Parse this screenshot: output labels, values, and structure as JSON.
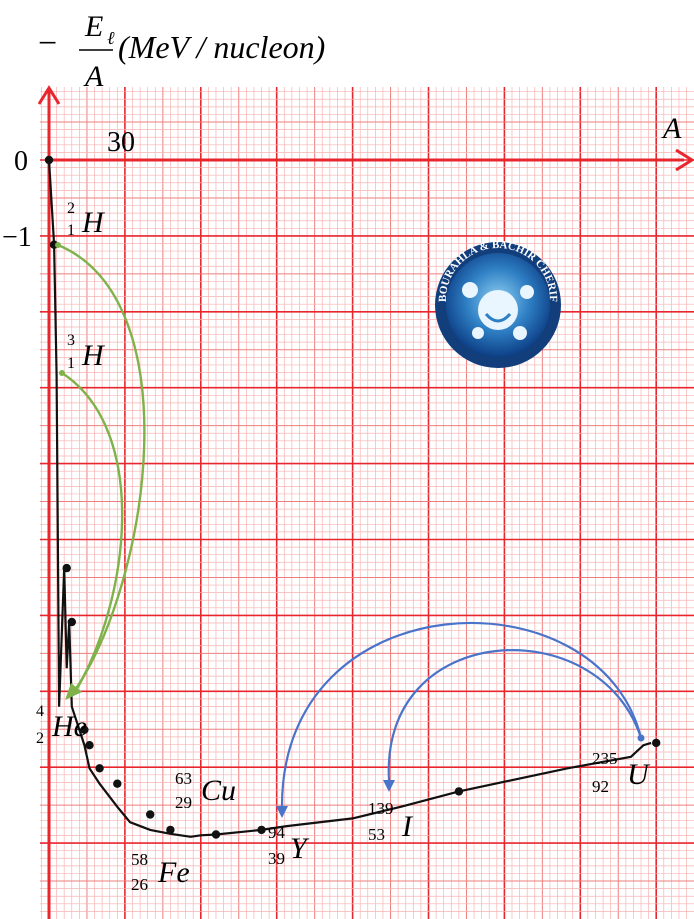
{
  "chart_data": {
    "type": "line",
    "title": "",
    "ylabel": {
      "sign": "−",
      "numerator": "E",
      "numerator_sub": "ℓ",
      "denominator": "A",
      "unit": "(MeV / nucleon)"
    },
    "xlabel": "A",
    "x_tick_label": "30",
    "y_tick_labels": [
      "0",
      "−1"
    ],
    "xlim": [
      0,
      240
    ],
    "ylim": [
      -9.5,
      0.35
    ],
    "curve": {
      "x": [
        0,
        2,
        3,
        4,
        6,
        7,
        8,
        9,
        12,
        14,
        16,
        20,
        27,
        32,
        40,
        48,
        56,
        60,
        66,
        84,
        94,
        120,
        139,
        162,
        205,
        230,
        235,
        238
      ],
      "y": [
        0,
        -1.1,
        -2.8,
        -7.1,
        -5.3,
        -6.6,
        -6.0,
        -7.1,
        -7.4,
        -7.6,
        -7.9,
        -8.1,
        -8.4,
        -8.6,
        -8.7,
        -8.75,
        -8.79,
        -8.77,
        -8.76,
        -8.7,
        -8.65,
        -8.55,
        -8.4,
        -8.2,
        -7.9,
        -7.75,
        -7.6,
        -7.57
      ]
    },
    "markers": {
      "x": [
        0,
        2,
        7,
        9,
        14,
        16,
        20,
        27,
        40,
        48,
        66,
        84,
        162,
        240
      ],
      "y": [
        0,
        -1.1,
        -5.3,
        -6.0,
        -7.4,
        -7.6,
        -7.9,
        -8.1,
        -8.5,
        -8.7,
        -8.76,
        -8.7,
        -8.2,
        -7.57
      ]
    },
    "nuclides": [
      {
        "symbol": "H",
        "mass": "2",
        "atomic": "1"
      },
      {
        "symbol": "H",
        "mass": "3",
        "atomic": "1"
      },
      {
        "symbol": "He",
        "mass": "4",
        "atomic": "2"
      },
      {
        "symbol": "Cu",
        "mass": "63",
        "atomic": "29"
      },
      {
        "symbol": "Fe",
        "mass": "58",
        "atomic": "26"
      },
      {
        "symbol": "Y",
        "mass": "94",
        "atomic": "39"
      },
      {
        "symbol": "I",
        "mass": "139",
        "atomic": "53"
      },
      {
        "symbol": "U",
        "mass": "235",
        "atomic": "92"
      }
    ],
    "fusion_arrows": [
      {
        "from": "2H",
        "to": "4He"
      },
      {
        "from": "3H",
        "to": "4He"
      }
    ],
    "fission_arrows": [
      {
        "from": "235U",
        "to": "94Y"
      },
      {
        "from": "235U",
        "to": "139I"
      }
    ],
    "grid": true,
    "colors": {
      "grid_minor": "#f7b3b3",
      "grid_major": "#e8262e",
      "axes": "#e8262e",
      "curve": "#111111",
      "fusion_arrow": "#7fb24a",
      "fission_arrow": "#4a74c9"
    },
    "logo": {
      "present": true,
      "text": "BOURAHLA & BACHIR CHERIF"
    }
  }
}
